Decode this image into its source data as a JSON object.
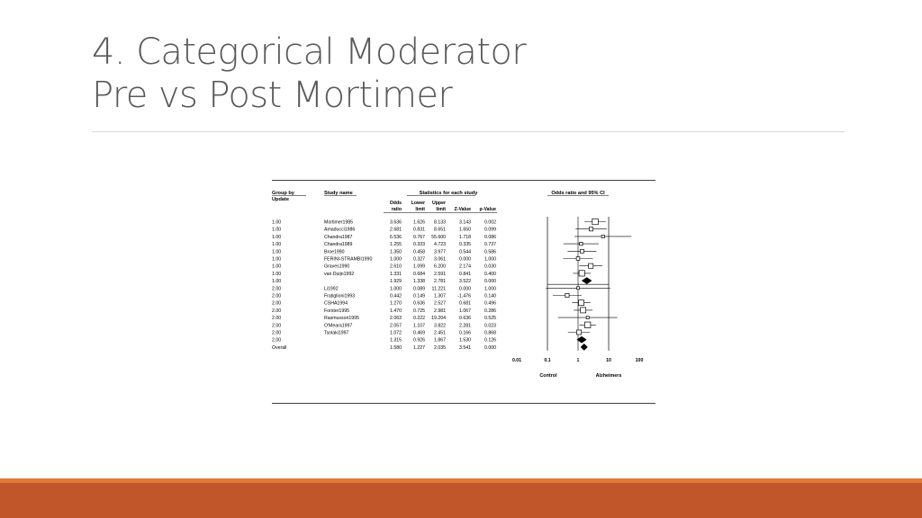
{
  "slide": {
    "title_line1": "4.  Categorical Moderator",
    "title_line2": "Pre vs Post Mortimer"
  },
  "colors": {
    "title_text": "#595959",
    "rule": "#d9d9d9",
    "footer_light": "#e07b39",
    "footer_dark": "#c0562a",
    "figure_ink": "#000000"
  },
  "chart_data": {
    "type": "table",
    "plot_type": "forest",
    "headers": {
      "group": "Group by",
      "group2": "Update",
      "study": "Study name",
      "stats_title": "Statistics for each study",
      "odds1": "Odds",
      "odds2": "ratio",
      "lower1": "Lower",
      "lower2": "limit",
      "upper1": "Upper",
      "upper2": "limit",
      "z": "Z-Value",
      "p": "p-Value",
      "plot_title": "Odds ratio and 95% CI"
    },
    "x_scale": "log",
    "xlim": [
      0.01,
      100
    ],
    "x_ticks": [
      "0.01",
      "0.1",
      "1",
      "10",
      "100"
    ],
    "x_tick_values": [
      0.01,
      0.1,
      1,
      10,
      100
    ],
    "favours_left": "Control",
    "favours_right": "Alzheimers",
    "rows": [
      {
        "group": "1.00",
        "study": "Mortimer1985",
        "or": "3.636",
        "lower": "1.626",
        "upper": "8.133",
        "z": "3.143",
        "p": "0.002",
        "kind": "study",
        "weight": 0.9
      },
      {
        "group": "1.00",
        "study": "Amaducci1986",
        "or": "2.681",
        "lower": "0.831",
        "upper": "8.651",
        "z": "1.650",
        "p": "0.099",
        "kind": "study",
        "weight": 0.45
      },
      {
        "group": "1.00",
        "study": "Chandra1987",
        "or": "6.536",
        "lower": "0.767",
        "upper": "55.600",
        "z": "1.718",
        "p": "0.086",
        "kind": "study",
        "weight": 0.25
      },
      {
        "group": "1.00",
        "study": "Chandra1989",
        "or": "1.255",
        "lower": "0.333",
        "upper": "4.723",
        "z": "0.335",
        "p": "0.737",
        "kind": "study",
        "weight": 0.3
      },
      {
        "group": "1.00",
        "study": "Broe1990",
        "or": "1.350",
        "lower": "0.458",
        "upper": "3.977",
        "z": "0.544",
        "p": "0.586",
        "kind": "study",
        "weight": 0.4
      },
      {
        "group": "1.00",
        "study": "FERINI-STRAMBI1990",
        "or": "1.000",
        "lower": "0.327",
        "upper": "3.061",
        "z": "0.000",
        "p": "1.000",
        "kind": "study",
        "weight": 0.35
      },
      {
        "group": "1.00",
        "study": "Graves1990",
        "or": "2.610",
        "lower": "1.099",
        "upper": "6.200",
        "z": "2.174",
        "p": "0.030",
        "kind": "study",
        "weight": 0.65
      },
      {
        "group": "1.00",
        "study": "van Duijn1992",
        "or": "1.331",
        "lower": "0.684",
        "upper": "2.591",
        "z": "0.841",
        "p": "0.400",
        "kind": "study",
        "weight": 0.85
      },
      {
        "group": "1.00",
        "study": "",
        "or": "1.929",
        "lower": "1.338",
        "upper": "2.781",
        "z": "3.522",
        "p": "0.000",
        "kind": "subtotal"
      },
      {
        "group": "2.00",
        "study": "Li1992",
        "or": "1.000",
        "lower": "0.089",
        "upper": "11.221",
        "z": "0.000",
        "p": "1.000",
        "kind": "study",
        "weight": 0.2
      },
      {
        "group": "2.00",
        "study": "Fratiglioni1993",
        "or": "0.442",
        "lower": "0.149",
        "upper": "1.307",
        "z": "-1.476",
        "p": "0.140",
        "kind": "study",
        "weight": 0.45
      },
      {
        "group": "2.00",
        "study": "CSHA1994",
        "or": "1.270",
        "lower": "0.636",
        "upper": "2.527",
        "z": "0.681",
        "p": "0.496",
        "kind": "study",
        "weight": 0.8
      },
      {
        "group": "2.00",
        "study": "Forster1995",
        "or": "1.470",
        "lower": "0.725",
        "upper": "2.981",
        "z": "1.067",
        "p": "0.286",
        "kind": "study",
        "weight": 0.8
      },
      {
        "group": "2.00",
        "study": "Rasmusson1995",
        "or": "2.063",
        "lower": "0.222",
        "upper": "19.204",
        "z": "0.636",
        "p": "0.525",
        "kind": "study",
        "weight": 0.22
      },
      {
        "group": "2.00",
        "study": "O'Meara1997",
        "or": "2.057",
        "lower": "1.107",
        "upper": "3.822",
        "z": "2.281",
        "p": "0.023",
        "kind": "study",
        "weight": 0.9
      },
      {
        "group": "2.00",
        "study": "Tsolaki1997",
        "or": "1.072",
        "lower": "0.469",
        "upper": "2.451",
        "z": "0.166",
        "p": "0.868",
        "kind": "study",
        "weight": 0.6
      },
      {
        "group": "2.00",
        "study": "",
        "or": "1.315",
        "lower": "0.926",
        "upper": "1.867",
        "z": "1.530",
        "p": "0.126",
        "kind": "subtotal"
      },
      {
        "group": "Overall",
        "study": "",
        "or": "1.580",
        "lower": "1.227",
        "upper": "2.035",
        "z": "3.541",
        "p": "0.000",
        "kind": "overall"
      }
    ]
  }
}
